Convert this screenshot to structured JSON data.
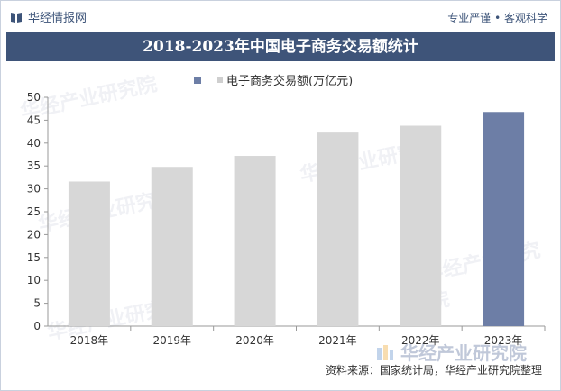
{
  "header": {
    "brand": "华经情报网",
    "slogan": "专业严谨 • 客观科学"
  },
  "chart_data": {
    "type": "bar",
    "title": "2018-2023年中国电子商务交易额统计",
    "legend": [
      "电子商务交易额(万亿元)"
    ],
    "categories": [
      "2018年",
      "2019年",
      "2020年",
      "2021年",
      "2022年",
      "2023年"
    ],
    "series": [
      {
        "name": "电子商务交易额(万亿元)",
        "values": [
          31.6,
          34.8,
          37.2,
          42.3,
          43.8,
          46.8
        ]
      }
    ],
    "ylim": [
      0,
      50
    ],
    "yticks": [
      0,
      5,
      10,
      15,
      20,
      25,
      30,
      35,
      40,
      45,
      50
    ],
    "xlabel": "",
    "ylabel": "",
    "grid": false,
    "legend_position": "top",
    "colors": {
      "default": "#d7d7d7",
      "highlight": "#6d7ea6"
    },
    "highlight_index": 5
  },
  "source": "资料来源：国家统计局，华经产业研究院整理",
  "watermark": {
    "text": "华经产业研究院",
    "url_text": "www.huaon.com"
  }
}
